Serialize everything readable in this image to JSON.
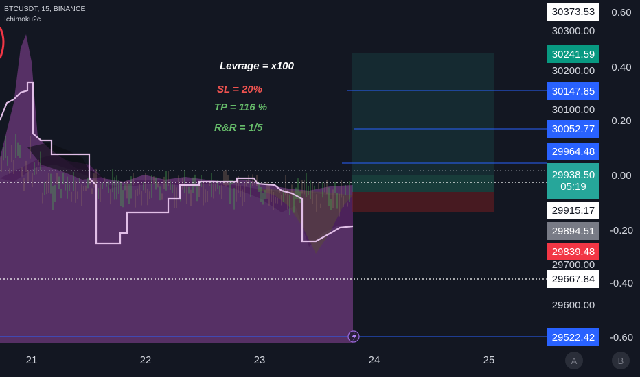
{
  "header": {
    "symbol_line": "BTCUSDT, 15, BINANCE",
    "indicator": "Ichimoku2c"
  },
  "annotations": {
    "leverage": "Levrage = x100",
    "sl": "SL = 20%",
    "tp": "TP = 116 %",
    "rr": "R&R = 1/5"
  },
  "price_axis": {
    "ticks": [
      "30300.00",
      "30200.00",
      "30100.00",
      "29700.00",
      "29600.00"
    ],
    "labels": {
      "top": "30373.53",
      "green_target": "30241.59",
      "blue1": "30147.85",
      "blue2": "30052.77",
      "blue3": "29964.48",
      "current": "29938.50",
      "countdown": "05:19",
      "white1": "29915.17",
      "gray": "29894.51",
      "red": "29839.48",
      "white2": "29667.84",
      "bottom_blue": "29522.42"
    }
  },
  "pct_axis": {
    "ticks": [
      "0.60",
      "0.40",
      "0.20",
      "0.00",
      "-0.20",
      "-0.40",
      "-0.60"
    ]
  },
  "time_axis": {
    "ticks": [
      "21",
      "22",
      "23",
      "24",
      "25"
    ]
  },
  "buttons": {
    "a": "A",
    "b": "B"
  },
  "colors": {
    "background": "#131722",
    "target_green": "#089981",
    "blue_level": "#2962ff",
    "current_green": "#26a69a",
    "stop_red": "#f23645",
    "gray_label": "#787b86",
    "cloud_purple": "#7b3f86",
    "baseline": "#e1bee7",
    "sl_text": "#ef5350",
    "tp_text": "#66bb6a"
  }
}
